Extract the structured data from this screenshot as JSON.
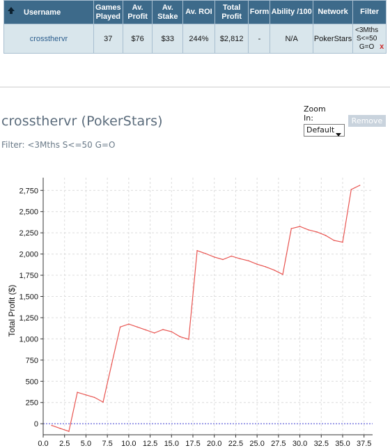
{
  "table": {
    "headers": {
      "username": "Username",
      "games_played": [
        "Games",
        "Played"
      ],
      "av_profit": [
        "Av.",
        "Profit"
      ],
      "av_stake": [
        "Av.",
        "Stake"
      ],
      "av_roi": "Av. ROI",
      "total_profit": [
        "Total",
        "Profit"
      ],
      "form": "Form",
      "ability": "Ability /100",
      "network": "Network",
      "filter": "Filter"
    },
    "row": {
      "username": "crossthervr",
      "games_played": "37",
      "av_profit": "$76",
      "av_stake": "$33",
      "av_roi": "244%",
      "total_profit": "$2,812",
      "form": "-",
      "ability": "N/A",
      "network": "PokerStars",
      "filter": [
        "<3Mths",
        "S<=50",
        "G=O"
      ],
      "remove_glyph": "x"
    }
  },
  "player_title": "crossthervr (PokerStars)",
  "filter_line": "Filter: <3Mths S<=50 G=O",
  "zoom": {
    "label": [
      "Zoom",
      "In:"
    ],
    "selected": "Default"
  },
  "remove_button": "Remove",
  "colors": {
    "header_bg": "#3d6a8a",
    "row_bg": "#d9e6ec",
    "line": "#e8534f",
    "zero_line": "#3a3ad0"
  },
  "chart_data": {
    "type": "line",
    "title": "",
    "xlabel": "",
    "ylabel": "Total Profit ($)",
    "xlim": [
      0,
      38.5
    ],
    "ylim": [
      -130,
      2900
    ],
    "x_ticks": [
      0,
      2.5,
      5,
      7.5,
      10,
      12.5,
      15,
      17.5,
      20,
      22.5,
      25,
      27.5,
      30,
      32.5,
      35,
      37.5
    ],
    "x_tick_labels": [
      "0.0",
      "2.5",
      "5.0",
      "7.5",
      "10.0",
      "12.5",
      "15.0",
      "17.5",
      "20.0",
      "22.5",
      "25.0",
      "27.5",
      "30.0",
      "32.5",
      "35.0",
      "37.5"
    ],
    "y_ticks": [
      0,
      250,
      500,
      750,
      1000,
      1250,
      1500,
      1750,
      2000,
      2250,
      2500,
      2750
    ],
    "y_tick_labels": [
      "0",
      "250",
      "500",
      "750",
      "1,000",
      "1,250",
      "1,500",
      "1,750",
      "2,000",
      "2,250",
      "2,500",
      "2,750"
    ],
    "grid": true,
    "series": [
      {
        "x": [
          1,
          2,
          3,
          4,
          5,
          6,
          7,
          8,
          9,
          10,
          11,
          12,
          13,
          14,
          15,
          16,
          17,
          18,
          19,
          20,
          21,
          22,
          23,
          24,
          25,
          26,
          27,
          28,
          29,
          30,
          31,
          32,
          33,
          34,
          35,
          36,
          37
        ],
        "y": [
          -20,
          -55,
          -90,
          370,
          340,
          310,
          255,
          700,
          1140,
          1175,
          1140,
          1105,
          1070,
          1110,
          1085,
          1025,
          995,
          2040,
          2005,
          1965,
          1935,
          1975,
          1945,
          1920,
          1880,
          1850,
          1810,
          1760,
          2300,
          2325,
          2285,
          2260,
          2220,
          2160,
          2140,
          2760,
          2810
        ]
      }
    ]
  }
}
